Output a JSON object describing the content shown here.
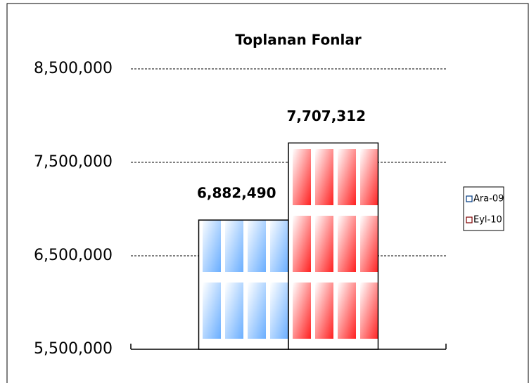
{
  "chart_data": {
    "type": "bar",
    "title": "Toplanan Fonlar",
    "categories": [
      null
    ],
    "series": [
      {
        "name": "Ara-09",
        "color": "#6aaeff",
        "values": [
          6882490
        ],
        "value_labels": [
          "6,882,490"
        ]
      },
      {
        "name": "Eyl-10",
        "color": "#ff2020",
        "values": [
          7707312
        ],
        "value_labels": [
          "7,707,312"
        ]
      }
    ],
    "ylim": [
      5500000,
      8500000
    ],
    "yticks": [
      {
        "value": 5500000,
        "label": "5,500,000"
      },
      {
        "value": 6500000,
        "label": "6,500,000"
      },
      {
        "value": 7500000,
        "label": "7,500,000"
      },
      {
        "value": 8500000,
        "label": "8,500,000"
      }
    ],
    "grid": true,
    "legend": "right"
  }
}
